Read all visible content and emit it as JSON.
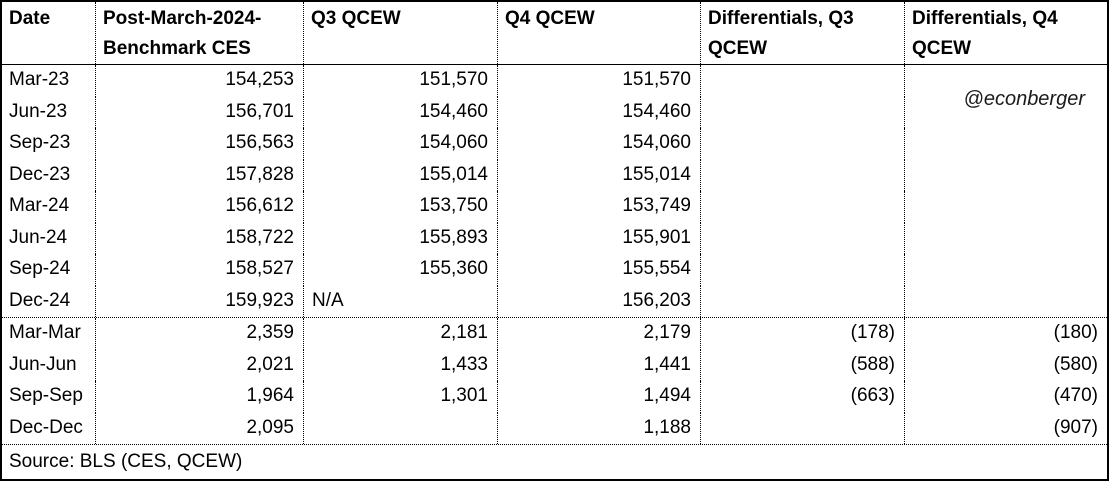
{
  "watermark": "@econberger",
  "colors": {
    "border": "#000000",
    "text": "#000000",
    "background": "#ffffff"
  },
  "table": {
    "columns": [
      "Date",
      "Post-March-2024-\nBenchmark CES",
      "Q3 QCEW",
      "Q4 QCEW",
      "Differentials, Q3\nQCEW",
      "Differentials, Q4\nQCEW"
    ],
    "levels_rows": [
      {
        "date": "Mar-23",
        "values": [
          "154,253",
          "151,570",
          "151,570",
          "",
          ""
        ]
      },
      {
        "date": "Jun-23",
        "values": [
          "156,701",
          "154,460",
          "154,460",
          "",
          ""
        ]
      },
      {
        "date": "Sep-23",
        "values": [
          "156,563",
          "154,060",
          "154,060",
          "",
          ""
        ]
      },
      {
        "date": "Dec-23",
        "values": [
          "157,828",
          "155,014",
          "155,014",
          "",
          ""
        ]
      },
      {
        "date": "Mar-24",
        "values": [
          "156,612",
          "153,750",
          "153,749",
          "",
          ""
        ]
      },
      {
        "date": "Jun-24",
        "values": [
          "158,722",
          "155,893",
          "155,901",
          "",
          ""
        ]
      },
      {
        "date": "Sep-24",
        "values": [
          "158,527",
          "155,360",
          "155,554",
          "",
          ""
        ]
      },
      {
        "date": "Dec-24",
        "values": [
          "159,923",
          "N/A",
          "156,203",
          "",
          ""
        ]
      }
    ],
    "diffs_rows": [
      {
        "date": "Mar-Mar",
        "values": [
          "2,359",
          "2,181",
          "2,179",
          "(178)",
          "(180)"
        ]
      },
      {
        "date": "Jun-Jun",
        "values": [
          "2,021",
          "1,433",
          "1,441",
          "(588)",
          "(580)"
        ]
      },
      {
        "date": "Sep-Sep",
        "values": [
          "1,964",
          "1,301",
          "1,494",
          "(663)",
          "(470)"
        ]
      },
      {
        "date": "Dec-Dec",
        "values": [
          "2,095",
          "",
          "1,188",
          "",
          "(907)"
        ]
      }
    ],
    "source_note": "Source: BLS (CES, QCEW)"
  },
  "chart_data": {
    "type": "table",
    "title": "",
    "columns": [
      "Date",
      "Post-March-2024-Benchmark CES",
      "Q3 QCEW",
      "Q4 QCEW",
      "Differentials, Q3 QCEW",
      "Differentials, Q4 QCEW"
    ],
    "rows": [
      [
        "Mar-23",
        154253,
        151570,
        151570,
        null,
        null
      ],
      [
        "Jun-23",
        156701,
        154460,
        154460,
        null,
        null
      ],
      [
        "Sep-23",
        156563,
        154060,
        154060,
        null,
        null
      ],
      [
        "Dec-23",
        157828,
        155014,
        155014,
        null,
        null
      ],
      [
        "Mar-24",
        156612,
        153750,
        153749,
        null,
        null
      ],
      [
        "Jun-24",
        158722,
        155893,
        155901,
        null,
        null
      ],
      [
        "Sep-24",
        158527,
        155360,
        155554,
        null,
        null
      ],
      [
        "Dec-24",
        159923,
        null,
        156203,
        null,
        null
      ],
      [
        "Mar-Mar",
        2359,
        2181,
        2179,
        -178,
        -180
      ],
      [
        "Jun-Jun",
        2021,
        1433,
        1441,
        -588,
        -580
      ],
      [
        "Sep-Sep",
        1964,
        1301,
        1494,
        -663,
        -470
      ],
      [
        "Dec-Dec",
        2095,
        null,
        1188,
        null,
        -907
      ]
    ],
    "notes": "Negative differentials shown in accounting parentheses; Dec-24 Q3 QCEW shown as N/A",
    "annotations": [
      "@econberger",
      "Source: BLS (CES, QCEW)"
    ]
  }
}
